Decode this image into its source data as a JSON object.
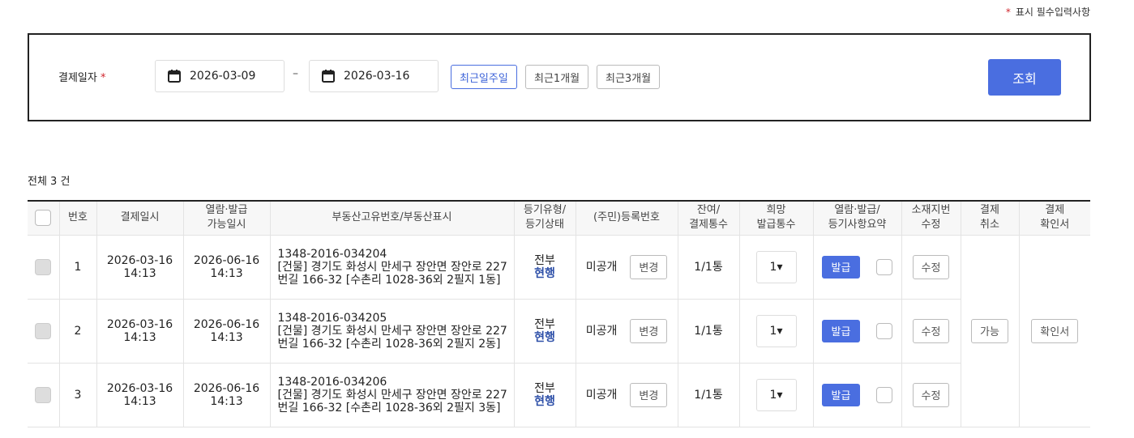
{
  "required_note": "표시 필수입력사항",
  "search": {
    "label": "결제일자",
    "date_from": "2026-03-09",
    "date_to": "2026-03-16",
    "dash": "–",
    "quick": [
      "최근일주일",
      "최근1개월",
      "최근3개월"
    ],
    "submit": "조회"
  },
  "total": "전체 3 건",
  "columns": [
    [
      "번호"
    ],
    [
      "결제일시"
    ],
    [
      "열람·발급",
      "가능일시"
    ],
    [
      "부동산고유번호/부동산표시"
    ],
    [
      "등기유형/",
      "등기상태"
    ],
    [
      "(주민)등록번호"
    ],
    [
      "잔여/",
      "결제통수"
    ],
    [
      "희망",
      "발급통수"
    ],
    [
      "열람·발급/",
      "등기사항요약"
    ],
    [
      "소재지번",
      "수정"
    ],
    [
      "결제",
      "취소"
    ],
    [
      "결제",
      "확인서"
    ]
  ],
  "rows": [
    {
      "no": "1",
      "paid_date": "2026-03-16",
      "paid_time": "14:13",
      "avail_date": "2026-06-16",
      "avail_time": "14:13",
      "id": "1348-2016-034204",
      "addr": "[건물] 경기도 화성시 만세구 장안면 장안로 227번길 166-32 [수촌리 1028-36외 2필지 1동]",
      "type": "전부",
      "status": "현행",
      "reg": "미공개",
      "change": "변경",
      "remain": "1/1통",
      "qty": "1▾",
      "issue": "발급",
      "edit": "수정"
    },
    {
      "no": "2",
      "paid_date": "2026-03-16",
      "paid_time": "14:13",
      "avail_date": "2026-06-16",
      "avail_time": "14:13",
      "id": "1348-2016-034205",
      "addr": "[건물] 경기도 화성시 만세구 장안면 장안로 227번길 166-32 [수촌리 1028-36외 2필지 2동]",
      "type": "전부",
      "status": "현행",
      "reg": "미공개",
      "change": "변경",
      "remain": "1/1통",
      "qty": "1▾",
      "issue": "발급",
      "edit": "수정"
    },
    {
      "no": "3",
      "paid_date": "2026-03-16",
      "paid_time": "14:13",
      "avail_date": "2026-06-16",
      "avail_time": "14:13",
      "id": "1348-2016-034206",
      "addr": "[건물] 경기도 화성시 만세구 장안면 장안로 227번길 166-32 [수촌리 1028-36외 2필지 3동]",
      "type": "전부",
      "status": "현행",
      "reg": "미공개",
      "change": "변경",
      "remain": "1/1통",
      "qty": "1▾",
      "issue": "발급",
      "edit": "수정"
    }
  ],
  "cancel": "가능",
  "receipt": "확인서",
  "colors": {
    "accent": "#4a6ee0",
    "required": "#d0262e",
    "status": "#2d4fa8"
  }
}
